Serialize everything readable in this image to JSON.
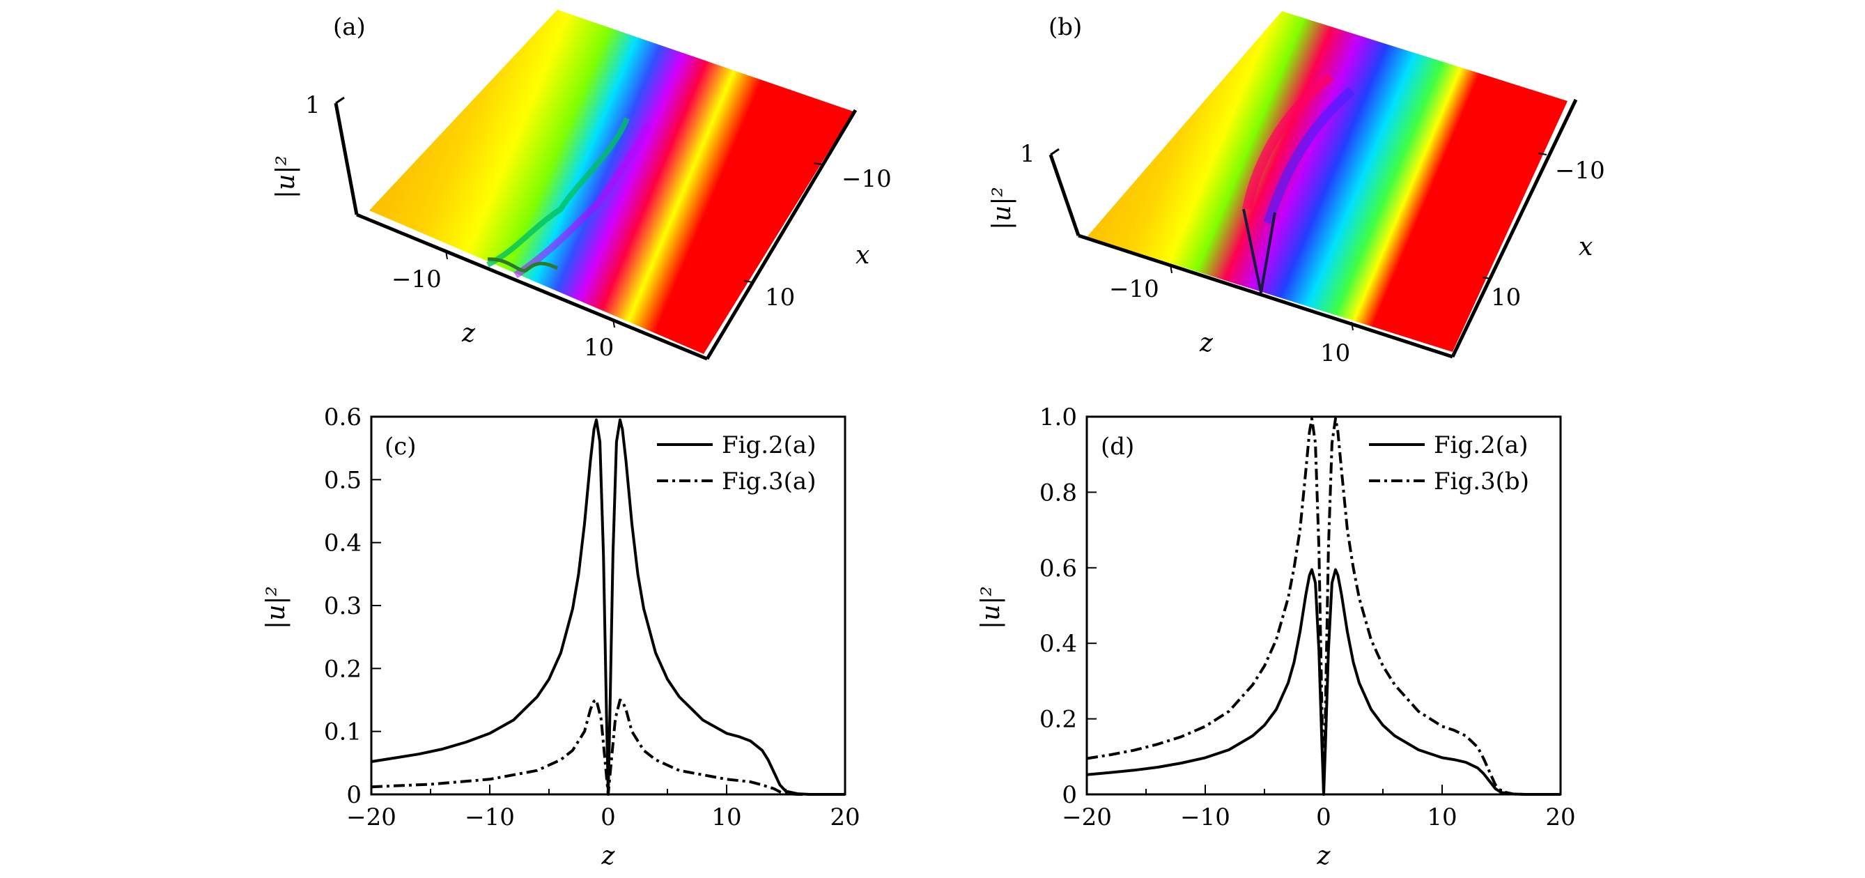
{
  "chart_data": [
    {
      "panel": "(a)",
      "type": "surface3d",
      "zlabel": "|u|²",
      "xlabel": "z",
      "ylabel": "x",
      "z_ticks": [
        "1"
      ],
      "x_ticks": [
        "−10",
        "10"
      ],
      "y_ticks": [
        "−10",
        "10"
      ],
      "colormap": "phase hue (orange → yellow → green → cyan → blue → magenta → red)",
      "description_values": {
        "peak": 0.6,
        "peaks_at_z": [
          -1,
          1
        ],
        "dip_at_z": 0
      }
    },
    {
      "panel": "(b)",
      "type": "surface3d",
      "zlabel": "|u|²",
      "xlabel": "z",
      "ylabel": "x",
      "z_ticks": [
        "1"
      ],
      "x_ticks": [
        "−10",
        "10"
      ],
      "y_ticks": [
        "−10",
        "10"
      ],
      "colormap": "phase hue (orange → yellow → green → cyan → blue → magenta → red)",
      "description_values": {
        "peak": 1.0,
        "peaks_at_z": [
          -1,
          1
        ],
        "dip_at_z": 0
      }
    },
    {
      "panel": "(c)",
      "type": "line",
      "xlabel": "z",
      "ylabel": "|u|²",
      "xlim": [
        -20,
        20
      ],
      "ylim": [
        0,
        0.6
      ],
      "x_ticks": [
        "−20",
        "−10",
        "0",
        "10",
        "20"
      ],
      "y_ticks": [
        "0",
        "0.1",
        "0.2",
        "0.3",
        "0.4",
        "0.5",
        "0.6"
      ],
      "legend_position": "top-right",
      "series": [
        {
          "name": "Fig.2(a)",
          "style": "solid",
          "x": [
            -20,
            -18,
            -16,
            -14,
            -12,
            -10,
            -8,
            -6,
            -5,
            -4,
            -3,
            -2.5,
            -2,
            -1.5,
            -1.2,
            -1,
            -0.7,
            -0.4,
            -0.15,
            0,
            0.15,
            0.4,
            0.7,
            1,
            1.2,
            1.5,
            2,
            2.5,
            3,
            4,
            5,
            6,
            8,
            10,
            11,
            12,
            13,
            13.5,
            14,
            14.5,
            15,
            16,
            17,
            18,
            20
          ],
          "y": [
            0.052,
            0.058,
            0.064,
            0.072,
            0.083,
            0.097,
            0.118,
            0.155,
            0.183,
            0.225,
            0.295,
            0.35,
            0.43,
            0.53,
            0.58,
            0.595,
            0.56,
            0.38,
            0.13,
            0.0,
            0.13,
            0.38,
            0.56,
            0.595,
            0.58,
            0.53,
            0.43,
            0.35,
            0.295,
            0.225,
            0.183,
            0.155,
            0.118,
            0.097,
            0.092,
            0.085,
            0.07,
            0.055,
            0.035,
            0.015,
            0.005,
            0.001,
            0.0,
            0.0,
            0.0
          ]
        },
        {
          "name": "Fig.3(a)",
          "style": "dash-dot",
          "x": [
            -20,
            -15,
            -10,
            -6,
            -4,
            -3,
            -2,
            -1.5,
            -1.2,
            -1,
            -0.6,
            -0.3,
            0,
            0.3,
            0.6,
            1,
            1.2,
            1.5,
            2,
            3,
            4,
            6,
            10,
            12,
            13,
            14,
            14.5,
            15,
            16,
            18,
            20
          ],
          "y": [
            0.012,
            0.016,
            0.024,
            0.038,
            0.055,
            0.07,
            0.1,
            0.135,
            0.148,
            0.15,
            0.12,
            0.06,
            0.0,
            0.06,
            0.12,
            0.15,
            0.148,
            0.135,
            0.1,
            0.07,
            0.055,
            0.038,
            0.024,
            0.02,
            0.015,
            0.009,
            0.004,
            0.001,
            0.0,
            0.0,
            0.0
          ]
        }
      ]
    },
    {
      "panel": "(d)",
      "type": "line",
      "xlabel": "z",
      "ylabel": "|u|²",
      "xlim": [
        -20,
        20
      ],
      "ylim": [
        0,
        1.0
      ],
      "x_ticks": [
        "−20",
        "−10",
        "0",
        "10",
        "20"
      ],
      "y_ticks": [
        "0",
        "0.2",
        "0.4",
        "0.6",
        "0.8",
        "1.0"
      ],
      "legend_position": "top-right",
      "series": [
        {
          "name": "Fig.2(a)",
          "style": "solid",
          "x": [
            -20,
            -18,
            -16,
            -14,
            -12,
            -10,
            -8,
            -6,
            -5,
            -4,
            -3,
            -2.5,
            -2,
            -1.5,
            -1.2,
            -1,
            -0.7,
            -0.4,
            -0.15,
            0,
            0.15,
            0.4,
            0.7,
            1,
            1.2,
            1.5,
            2,
            2.5,
            3,
            4,
            5,
            6,
            8,
            10,
            11,
            12,
            13,
            13.5,
            14,
            14.5,
            15,
            16,
            17,
            18,
            20
          ],
          "y": [
            0.052,
            0.058,
            0.064,
            0.072,
            0.083,
            0.097,
            0.118,
            0.155,
            0.183,
            0.225,
            0.295,
            0.35,
            0.43,
            0.53,
            0.58,
            0.595,
            0.56,
            0.38,
            0.13,
            0.0,
            0.13,
            0.38,
            0.56,
            0.595,
            0.58,
            0.53,
            0.43,
            0.35,
            0.295,
            0.225,
            0.183,
            0.155,
            0.118,
            0.097,
            0.092,
            0.085,
            0.07,
            0.055,
            0.035,
            0.015,
            0.005,
            0.001,
            0.0,
            0.0,
            0.0
          ]
        },
        {
          "name": "Fig.3(b)",
          "style": "dash-dot",
          "x": [
            -20,
            -18,
            -16,
            -14,
            -12,
            -10,
            -8,
            -6,
            -5,
            -4,
            -3,
            -2.5,
            -2,
            -1.5,
            -1.2,
            -1,
            -0.7,
            -0.4,
            -0.15,
            0,
            0.15,
            0.4,
            0.7,
            1,
            1.2,
            1.5,
            2,
            2.5,
            3,
            4,
            5,
            6,
            8,
            10,
            11,
            12,
            13,
            13.5,
            14,
            14.5,
            15,
            16,
            17,
            18,
            20
          ],
          "y": [
            0.095,
            0.105,
            0.117,
            0.133,
            0.153,
            0.18,
            0.22,
            0.29,
            0.34,
            0.41,
            0.52,
            0.6,
            0.7,
            0.86,
            0.96,
            0.995,
            0.93,
            0.65,
            0.22,
            0.0,
            0.22,
            0.65,
            0.93,
            0.995,
            0.96,
            0.86,
            0.7,
            0.6,
            0.52,
            0.41,
            0.34,
            0.29,
            0.22,
            0.18,
            0.17,
            0.155,
            0.125,
            0.095,
            0.06,
            0.025,
            0.008,
            0.001,
            0.0,
            0.0,
            0.0
          ]
        }
      ]
    }
  ]
}
